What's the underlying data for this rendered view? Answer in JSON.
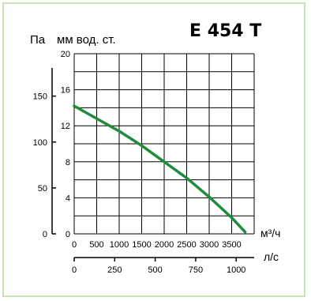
{
  "chart_data": {
    "type": "line",
    "title": "E 454 T",
    "y_units_left": "Па",
    "y_units_right": "мм вод. ст.",
    "x_units_top": "м³/ч",
    "x_units_bottom": "л/с",
    "x_top_ticks": [
      "0",
      "500",
      "1000",
      "1500",
      "2000",
      "2500",
      "3000",
      "3500"
    ],
    "x_bottom_ticks": [
      "0",
      "250",
      "500",
      "750",
      "1000"
    ],
    "y_mm_ticks": [
      "20",
      "16",
      "12",
      "8",
      "4",
      "0"
    ],
    "y_pa_ticks": [
      "150",
      "100",
      "50",
      "0"
    ],
    "xlim": [
      0,
      4000
    ],
    "ylim": [
      0,
      20
    ],
    "grid": true,
    "line_color": "#1e8c3a",
    "series": [
      {
        "x": [
          0,
          500,
          1000,
          1500,
          2000,
          2500,
          3000,
          3500,
          3800
        ],
        "y": [
          14.2,
          12.8,
          11.4,
          9.8,
          8.0,
          6.2,
          4.1,
          1.8,
          0.2
        ]
      }
    ]
  }
}
